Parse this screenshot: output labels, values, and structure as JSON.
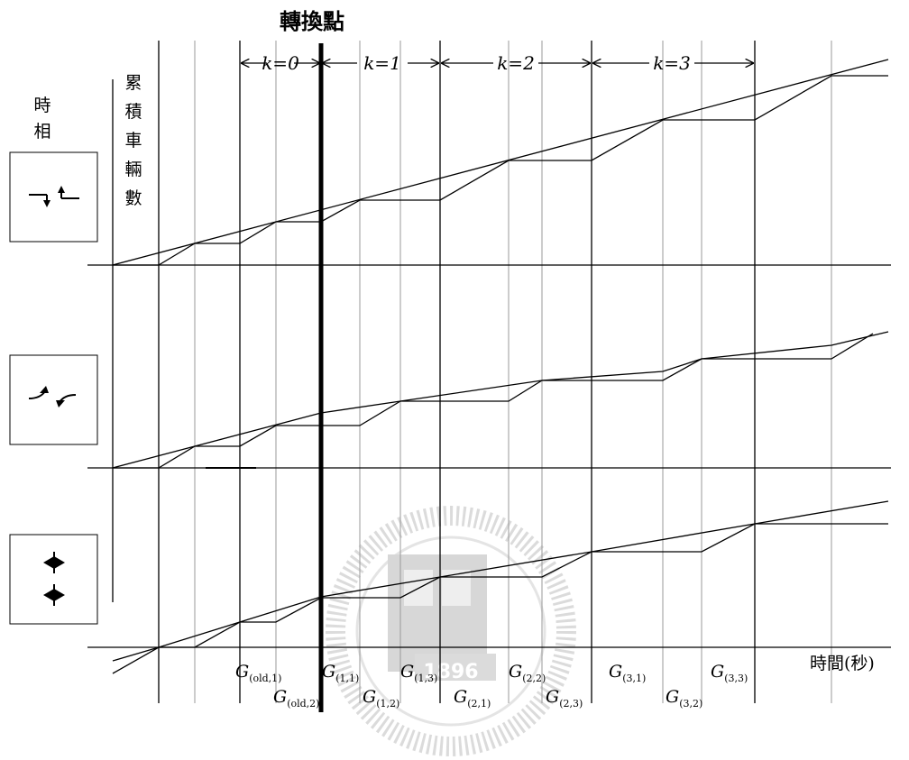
{
  "title": "轉換點",
  "labels": {
    "phase": [
      "時",
      "相"
    ],
    "cumulative_vehicles": [
      "累",
      "積",
      "車",
      "輛",
      "數"
    ],
    "time_axis": "時間(秒)"
  },
  "intervals": [
    {
      "k": "0",
      "text": "k=0"
    },
    {
      "k": "1",
      "text": "k=1"
    },
    {
      "k": "2",
      "text": "k=2"
    },
    {
      "k": "3",
      "text": "k=3"
    }
  ],
  "phase_icons": [
    "through-turn-phase-icon",
    "opposing-turn-phase-icon",
    "north-south-phase-icon"
  ],
  "green_labels": [
    {
      "main": "G",
      "sub": "(old,1)"
    },
    {
      "main": "G",
      "sub": "(old,2)"
    },
    {
      "main": "G",
      "sub": "(1,1)"
    },
    {
      "main": "G",
      "sub": "(1,2)"
    },
    {
      "main": "G",
      "sub": "(1,3)"
    },
    {
      "main": "G",
      "sub": "(2,1)"
    },
    {
      "main": "G",
      "sub": "(2,2)"
    },
    {
      "main": "G",
      "sub": "(2,3)"
    },
    {
      "main": "G",
      "sub": "(3,1)"
    },
    {
      "main": "G",
      "sub": "(3,2)"
    },
    {
      "main": "G",
      "sub": "(3,3)"
    }
  ],
  "watermark_text": "1896"
}
